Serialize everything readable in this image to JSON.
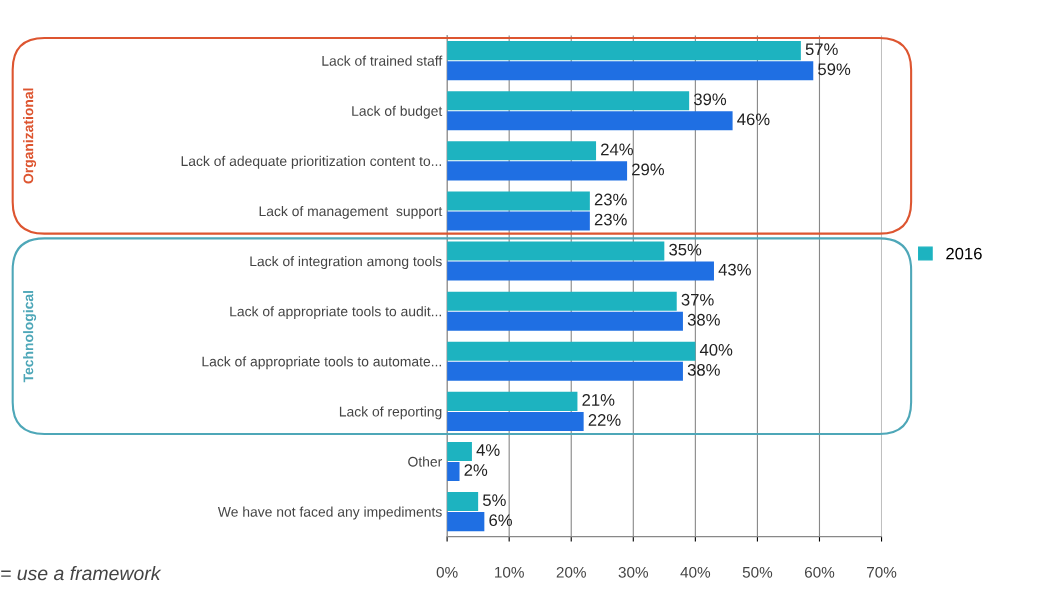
{
  "chart_data": {
    "type": "bar",
    "orientation": "horizontal",
    "categories": [
      "Lack of trained staff",
      "Lack of budget",
      "Lack of adequate prioritization content to...",
      "Lack of management  support",
      "Lack of integration among tools",
      "Lack of appropriate tools to audit...",
      "Lack of appropriate tools to automate...",
      "Lack of reporting",
      "Other",
      "We have not faced any impediments"
    ],
    "series": [
      {
        "name": "2016",
        "color": "#1db3c0",
        "values": [
          57,
          39,
          24,
          23,
          35,
          37,
          40,
          21,
          4,
          5
        ]
      },
      {
        "color": "#1f6fe3",
        "values": [
          59,
          46,
          29,
          23,
          43,
          38,
          38,
          22,
          2,
          6
        ]
      }
    ],
    "xlim": [
      0,
      70
    ],
    "xticks": [
      {
        "value": 0,
        "label": "0%"
      },
      {
        "value": 10,
        "label": "10%"
      },
      {
        "value": 20,
        "label": "20%"
      },
      {
        "value": 30,
        "label": "30%"
      },
      {
        "value": 40,
        "label": "40%"
      },
      {
        "value": 50,
        "label": "50%"
      },
      {
        "value": 60,
        "label": "60%"
      },
      {
        "value": 70,
        "label": "70%"
      }
    ],
    "value_labels": [
      [
        "57%",
        "39%",
        "24%",
        "23%",
        "35%",
        "37%",
        "40%",
        "21%",
        "4%",
        "5%"
      ],
      [
        "59%",
        "46%",
        "29%",
        "23%",
        "43%",
        "38%",
        "38%",
        "22%",
        "2%",
        "6%"
      ]
    ],
    "grid": "x",
    "legend": "right",
    "annotations": [
      "Organizational",
      "Technological",
      "= use a framework"
    ]
  }
}
